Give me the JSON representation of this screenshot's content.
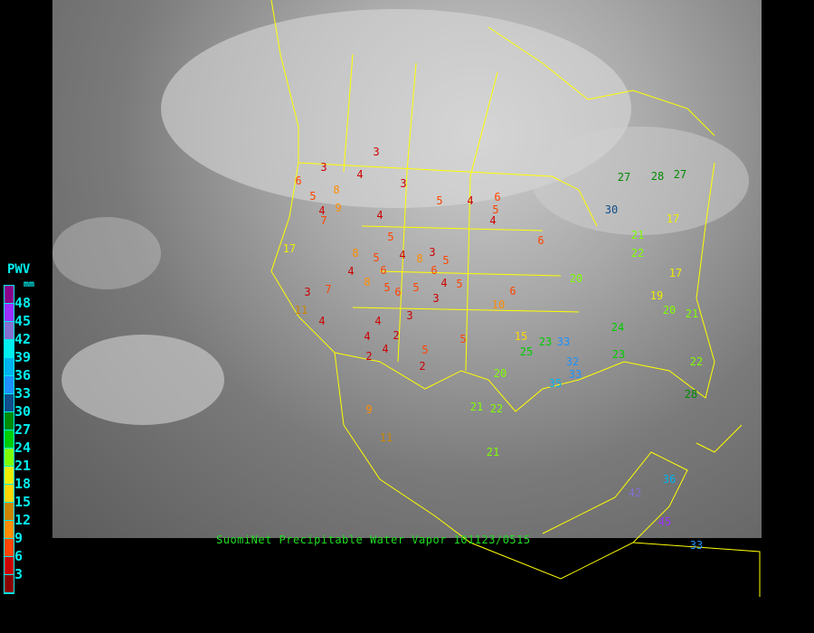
{
  "caption": "SuomiNet Precipitable Water Vapor 101123/0515",
  "legend": {
    "title": "PWV",
    "unit": "mm",
    "levels": [
      {
        "label": "48",
        "color": "#8b008b"
      },
      {
        "label": "45",
        "color": "#9b30ff"
      },
      {
        "label": "42",
        "color": "#8470d0"
      },
      {
        "label": "39",
        "color": "#00eeee"
      },
      {
        "label": "36",
        "color": "#00b2ee"
      },
      {
        "label": "33",
        "color": "#1e90ff"
      },
      {
        "label": "30",
        "color": "#104e8b"
      },
      {
        "label": "27",
        "color": "#008b00"
      },
      {
        "label": "24",
        "color": "#00cd00"
      },
      {
        "label": "21",
        "color": "#7fff00"
      },
      {
        "label": "18",
        "color": "#eeee00"
      },
      {
        "label": "15",
        "color": "#ffd700"
      },
      {
        "label": "12",
        "color": "#cd8500"
      },
      {
        "label": "9",
        "color": "#ff8c00"
      },
      {
        "label": "6",
        "color": "#ff4500"
      },
      {
        "label": "3",
        "color": "#cd0000"
      },
      {
        "label": "",
        "color": "#8b0000"
      }
    ]
  },
  "border_color": "#ffff00",
  "stations": [
    "3",
    "4",
    "3",
    "6",
    "5",
    "8",
    "4",
    "3",
    "5",
    "4",
    "5",
    "6",
    "4",
    "6",
    "7",
    "9",
    "4",
    "5",
    "8",
    "4",
    "5",
    "6",
    "4",
    "8",
    "17",
    "11",
    "4",
    "3",
    "7",
    "5",
    "6",
    "5",
    "8",
    "3",
    "3",
    "6",
    "5",
    "4",
    "3",
    "5",
    "4",
    "2",
    "4",
    "2",
    "5",
    "5",
    "2",
    "4",
    "6",
    "10",
    "15",
    "20",
    "22",
    "21",
    "25",
    "23",
    "33",
    "32",
    "35",
    "33",
    "24",
    "27",
    "28",
    "27",
    "17",
    "22",
    "21",
    "17",
    "19",
    "20",
    "21",
    "23",
    "22",
    "28",
    "30",
    "20",
    "42",
    "36",
    "33",
    "45",
    "21",
    "11",
    "9"
  ]
}
